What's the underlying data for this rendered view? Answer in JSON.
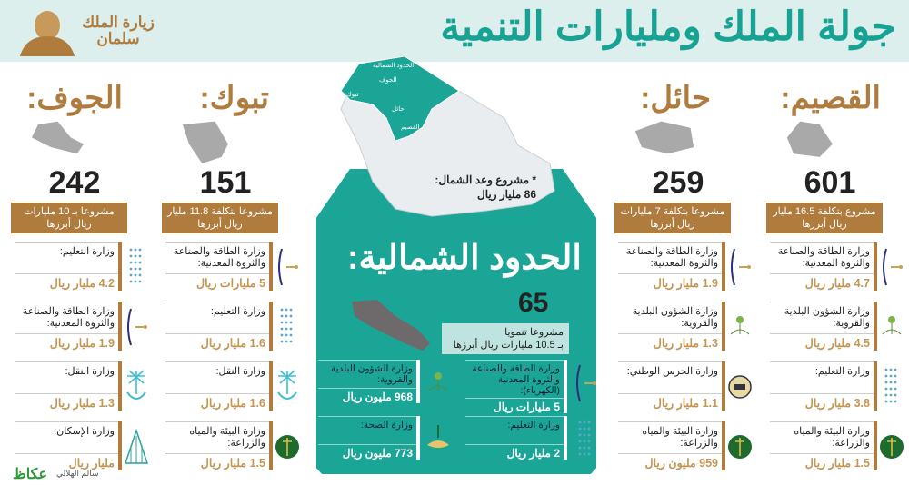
{
  "header": {
    "title": "جولة الملك ومليارات التنمية",
    "logo_text": "زيارة الملك سلمان"
  },
  "colors": {
    "teal": "#1aa596",
    "brown": "#b07c3e",
    "gold": "#c39653",
    "header_bg": "#dcefec"
  },
  "regions": [
    {
      "name": "الجوف:",
      "count": "242",
      "summary": "مشروعا بـ 10 مليارات ريال أبرزها",
      "items": [
        {
          "ministry": "وزارة التعليم:",
          "amount": "4.2 مليار ريال",
          "icon": "education-icon"
        },
        {
          "ministry": "وزارة الطاقة والصناعة والثروة المعدنية:",
          "amount": "1.9 مليار ريال",
          "icon": "energy-icon"
        },
        {
          "ministry": "وزارة النقل:",
          "amount": "1.3 مليار ريال",
          "icon": "transport-icon"
        },
        {
          "ministry": "وزارة الإسكان:",
          "amount": "مليار ريال",
          "icon": "housing-icon"
        }
      ]
    },
    {
      "name": "تبوك:",
      "count": "151",
      "summary": "مشروعا بتكلفة 11.8 مليار ريال أبرزها",
      "items": [
        {
          "ministry": "وزارة الطاقة والصناعة والثروة المعدنية:",
          "amount": "5 مليارات ريال",
          "icon": "energy-icon"
        },
        {
          "ministry": "وزارة التعليم:",
          "amount": "1.6 مليار ريال",
          "icon": "education-icon"
        },
        {
          "ministry": "وزارة النقل:",
          "amount": "1.6 مليار ريال",
          "icon": "transport-icon"
        },
        {
          "ministry": "وزارة البيئة والمياه والزراعة:",
          "amount": "1.5 مليار ريال",
          "icon": "environment-icon"
        }
      ]
    },
    {
      "name": "حائل:",
      "count": "259",
      "summary": "مشروعا بتكلفة 7 مليارات ريال أبرزها",
      "items": [
        {
          "ministry": "وزارة الطاقة والصناعة والثروة المعدنية:",
          "amount": "1.9 مليار ريال",
          "icon": "energy-icon"
        },
        {
          "ministry": "وزارة الشؤون البلدية والقروية:",
          "amount": "1.3 مليار ريال",
          "icon": "municipal-icon"
        },
        {
          "ministry": "وزارة الحرس الوطني:",
          "amount": "1.1 مليار ريال",
          "icon": "national-guard-icon"
        },
        {
          "ministry": "وزارة البيئة والمياه والزراعة:",
          "amount": "959 مليون ريال",
          "icon": "environment-icon"
        }
      ]
    },
    {
      "name": "القصيم:",
      "count": "601",
      "summary": "مشروع بتكلفة 16.5 مليار ريال أبرزها",
      "items": [
        {
          "ministry": "وزارة الطاقة والصناعة والثروة المعدنية:",
          "amount": "4.7 مليار ريال",
          "icon": "energy-icon"
        },
        {
          "ministry": "وزارة الشؤون البلدية والقروية:",
          "amount": "4.5 مليار ريال",
          "icon": "municipal-icon"
        },
        {
          "ministry": "وزارة التعليم:",
          "amount": "3.8 مليار ريال",
          "icon": "education-icon"
        },
        {
          "ministry": "وزارة البيئة والمياه والزراعة:",
          "amount": "1.5 مليار ريال",
          "icon": "environment-icon"
        }
      ]
    }
  ],
  "map": {
    "labels": [
      "الحدود الشمالية",
      "الجوف",
      "تبوك",
      "حائل",
      "القصيم"
    ],
    "note_line1": "* مشروع وعد الشمال:",
    "note_line2": "86 مليار ريال"
  },
  "northern": {
    "name": "الحدود الشمالية:",
    "count": "65",
    "summary_line1": "مشروعا تنمويا",
    "summary_line2": "بـ 10.5 مليارات ريال أبرزها",
    "items": [
      {
        "ministry": "وزارة الطاقة والصناعة والثروة المعدنية (الكهرباء):",
        "amount": "5 مليارات ريال",
        "icon": "energy-icon"
      },
      {
        "ministry": "وزارة الشؤون البلدية والقروية:",
        "amount": "968 مليون ريال",
        "icon": "municipal-icon"
      },
      {
        "ministry": "وزارة التعليم:",
        "amount": "2 مليار ريال",
        "icon": "education-icon"
      },
      {
        "ministry": "وزارة الصحة:",
        "amount": "773 مليون ريال",
        "icon": "health-icon"
      }
    ]
  },
  "footer": {
    "publisher": "عكاظ",
    "author": "سالم الهلالي"
  }
}
